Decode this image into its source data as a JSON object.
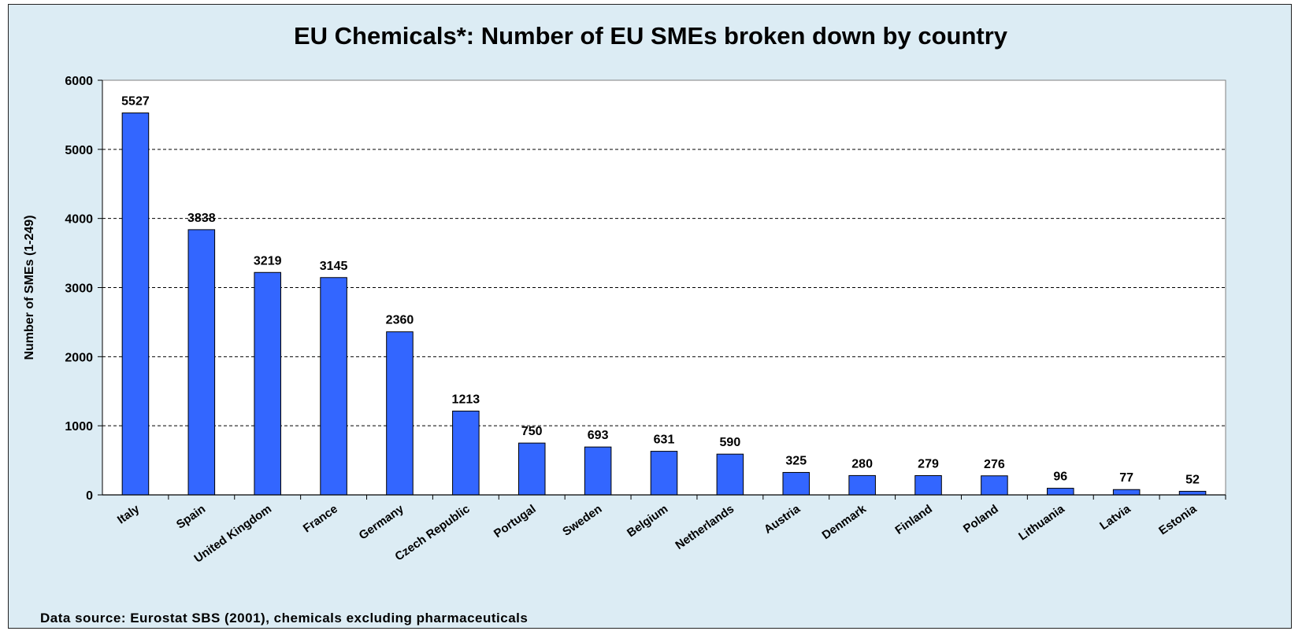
{
  "chart_data": {
    "type": "bar",
    "title": "EU Chemicals*: Number of EU SMEs broken down by country",
    "xlabel": "",
    "ylabel": "Number of SMEs (1-249)",
    "ylim": [
      0,
      6000
    ],
    "yticks": [
      0,
      1000,
      2000,
      3000,
      4000,
      5000,
      6000
    ],
    "grid": true,
    "legend": "none",
    "bar_color": "#3366ff",
    "categories": [
      "Italy",
      "Spain",
      "United Kingdom",
      "France",
      "Germany",
      "Czech Republic",
      "Portugal",
      "Sweden",
      "Belgium",
      "Netherlands",
      "Austria",
      "Denmark",
      "Finland",
      "Poland",
      "Lithuania",
      "Latvia",
      "Estonia"
    ],
    "values": [
      5527,
      3838,
      3219,
      3145,
      2360,
      1213,
      750,
      693,
      631,
      590,
      325,
      280,
      279,
      276,
      96,
      77,
      52
    ],
    "data_labels": [
      "5527",
      "3838",
      "3219",
      "3145",
      "2360",
      "1213",
      "750",
      "693",
      "631",
      "590",
      "325",
      "280",
      "279",
      "276",
      "96",
      "77",
      "52"
    ]
  },
  "footer": {
    "source": "Data source: Eurostat SBS (2001), chemicals excluding pharmaceuticals"
  }
}
